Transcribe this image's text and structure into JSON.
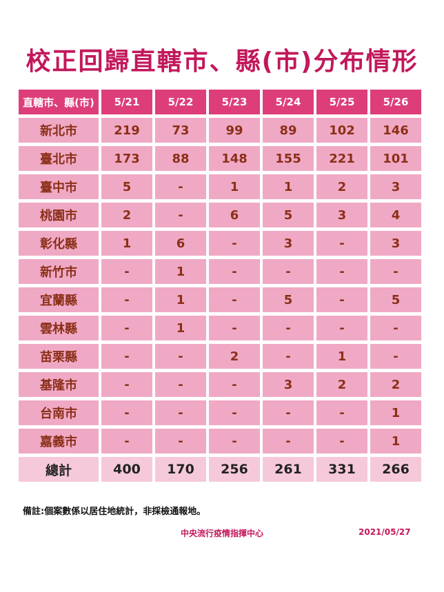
{
  "title": "校正回歸直轄市、縣(市)分布情形",
  "table": {
    "header": [
      "直轄市、縣(市)",
      "5/21",
      "5/22",
      "5/23",
      "5/24",
      "5/25",
      "5/26"
    ],
    "rows": [
      {
        "name": "新北市",
        "values": [
          "219",
          "73",
          "99",
          "89",
          "102",
          "146"
        ]
      },
      {
        "name": "臺北市",
        "values": [
          "173",
          "88",
          "148",
          "155",
          "221",
          "101"
        ]
      },
      {
        "name": "臺中市",
        "values": [
          "5",
          "-",
          "1",
          "1",
          "2",
          "3"
        ]
      },
      {
        "name": "桃園市",
        "values": [
          "2",
          "-",
          "6",
          "5",
          "3",
          "4"
        ]
      },
      {
        "name": "彰化縣",
        "values": [
          "1",
          "6",
          "-",
          "3",
          "-",
          "3"
        ]
      },
      {
        "name": "新竹市",
        "values": [
          "-",
          "1",
          "-",
          "-",
          "-",
          "-"
        ]
      },
      {
        "name": "宜蘭縣",
        "values": [
          "-",
          "1",
          "-",
          "5",
          "-",
          "5"
        ]
      },
      {
        "name": "雲林縣",
        "values": [
          "-",
          "1",
          "-",
          "-",
          "-",
          "-"
        ]
      },
      {
        "name": "苗栗縣",
        "values": [
          "-",
          "-",
          "2",
          "-",
          "1",
          "-"
        ]
      },
      {
        "name": "基隆市",
        "values": [
          "-",
          "-",
          "-",
          "3",
          "2",
          "2"
        ]
      },
      {
        "name": "台南市",
        "values": [
          "-",
          "-",
          "-",
          "-",
          "-",
          "1"
        ]
      },
      {
        "name": "嘉義市",
        "values": [
          "-",
          "-",
          "-",
          "-",
          "-",
          "1"
        ]
      }
    ],
    "total": {
      "name": "總計",
      "values": [
        "400",
        "170",
        "256",
        "261",
        "331",
        "266"
      ]
    }
  },
  "note": "備註:個案數係以居住地統計，非採檢通報地。",
  "footer": {
    "org": "中央流行疫情指揮中心",
    "date": "2021/05/27"
  },
  "colors": {
    "title": "#c2185b",
    "header_bg": "#dd3e7a",
    "cell_bg": "#f0a9c5",
    "total_bg": "#f6c9da"
  }
}
